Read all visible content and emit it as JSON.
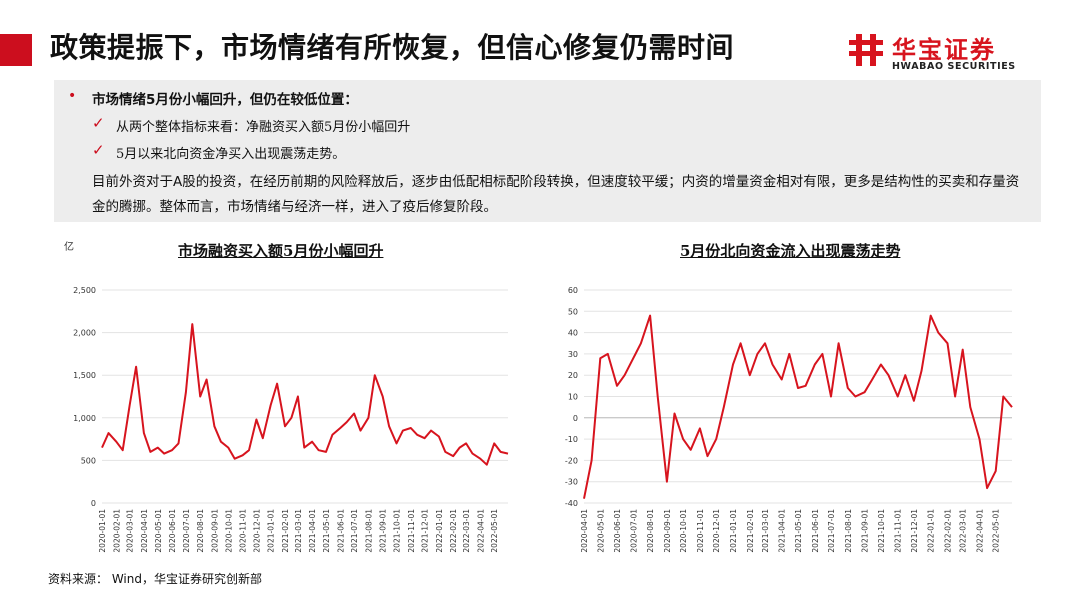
{
  "header": {
    "title": "政策提振下，市场情绪有所恢复，但信心修复仍需时间",
    "accent_color": "#cc0e1e"
  },
  "logo": {
    "cn": "华宝证券",
    "en": "HWABAO SECURITIES",
    "brand_color": "#d7141e"
  },
  "summary": {
    "main_bullet": "市场情绪5月份小幅回升，但仍在较低位置：",
    "sub_bullets": [
      "从两个整体指标来看：净融资买入额5月份小幅回升",
      "5月以来北向资金净买入出现震荡走势。"
    ],
    "paragraph": "目前外资对于A股的投资，在经历前期的风险释放后，逐步由低配相标配阶段转换，但速度较平缓；内资的增量资金相对有限，更多是结构性的买卖和存量资金的腾挪。整体而言，市场情绪与经济一样，进入了疫后修复阶段。",
    "bullet_icon": "check-icon"
  },
  "chart_data": [
    {
      "type": "line",
      "title": "市场融资买入额5月份小幅回升",
      "unit": "亿",
      "ylim": [
        0,
        2500
      ],
      "yticks": [
        0,
        500,
        1000,
        1500,
        2000,
        2500
      ],
      "ytick_labels": [
        "0",
        "500",
        "1,000",
        "1,500",
        "2,000",
        "2,500"
      ],
      "x_labels": [
        "2020-01-01",
        "2020-02-01",
        "2020-03-01",
        "2020-04-01",
        "2020-05-01",
        "2020-06-01",
        "2020-07-01",
        "2020-08-01",
        "2020-09-01",
        "2020-10-01",
        "2020-11-01",
        "2020-12-01",
        "2021-01-01",
        "2021-02-01",
        "2021-03-01",
        "2021-04-01",
        "2021-05-01",
        "2021-06-01",
        "2021-07-01",
        "2021-08-01",
        "2021-09-01",
        "2021-10-01",
        "2021-11-01",
        "2021-12-01",
        "2022-01-01",
        "2022-02-01",
        "2022-03-01",
        "2022-04-01",
        "2022-05-01"
      ],
      "grid": true,
      "line_color": "#d7141e",
      "x": [
        "2020-01-01",
        "2020-01-15",
        "2020-02-01",
        "2020-02-15",
        "2020-03-01",
        "2020-03-15",
        "2020-04-01",
        "2020-04-15",
        "2020-05-01",
        "2020-05-15",
        "2020-06-01",
        "2020-06-15",
        "2020-07-01",
        "2020-07-15",
        "2020-08-01",
        "2020-08-15",
        "2020-09-01",
        "2020-09-15",
        "2020-10-01",
        "2020-10-15",
        "2020-11-01",
        "2020-11-15",
        "2020-12-01",
        "2020-12-15",
        "2021-01-01",
        "2021-01-15",
        "2021-02-01",
        "2021-02-15",
        "2021-03-01",
        "2021-03-15",
        "2021-04-01",
        "2021-04-15",
        "2021-05-01",
        "2021-05-15",
        "2021-06-01",
        "2021-06-15",
        "2021-07-01",
        "2021-07-15",
        "2021-08-01",
        "2021-08-15",
        "2021-09-01",
        "2021-09-15",
        "2021-10-01",
        "2021-10-15",
        "2021-11-01",
        "2021-11-15",
        "2021-12-01",
        "2021-12-15",
        "2022-01-01",
        "2022-01-15",
        "2022-02-01",
        "2022-02-15",
        "2022-03-01",
        "2022-03-15",
        "2022-04-01",
        "2022-04-15",
        "2022-05-01",
        "2022-05-15",
        "2022-05-31"
      ],
      "values": [
        650,
        820,
        720,
        620,
        1150,
        1600,
        820,
        600,
        650,
        580,
        620,
        700,
        1300,
        2100,
        1250,
        1450,
        900,
        720,
        650,
        520,
        560,
        620,
        980,
        760,
        1150,
        1400,
        900,
        1000,
        1250,
        650,
        720,
        620,
        600,
        800,
        880,
        950,
        1050,
        850,
        1000,
        1500,
        1250,
        900,
        700,
        850,
        880,
        800,
        760,
        850,
        780,
        600,
        550,
        650,
        700,
        580,
        520,
        450,
        700,
        600,
        580
      ]
    },
    {
      "type": "line",
      "title": "5月份北向资金流入出现震荡走势",
      "ylim": [
        -40,
        60
      ],
      "yticks": [
        -40,
        -30,
        -20,
        -10,
        0,
        10,
        20,
        30,
        40,
        50,
        60
      ],
      "ytick_labels": [
        "-40",
        "-30",
        "-20",
        "-10",
        "0",
        "10",
        "20",
        "30",
        "40",
        "50",
        "60"
      ],
      "x_labels": [
        "2020-04-01",
        "2020-05-01",
        "2020-06-01",
        "2020-07-01",
        "2020-08-01",
        "2020-09-01",
        "2020-10-01",
        "2020-11-01",
        "2020-12-01",
        "2021-01-01",
        "2021-02-01",
        "2021-03-01",
        "2021-04-01",
        "2021-05-01",
        "2021-06-01",
        "2021-07-01",
        "2021-08-01",
        "2021-09-01",
        "2021-10-01",
        "2021-11-01",
        "2021-12-01",
        "2022-01-01",
        "2022-02-01",
        "2022-03-01",
        "2022-04-01",
        "2022-05-01"
      ],
      "grid": true,
      "line_color": "#d7141e",
      "x": [
        "2020-04-01",
        "2020-04-15",
        "2020-05-01",
        "2020-05-15",
        "2020-06-01",
        "2020-06-15",
        "2020-07-01",
        "2020-07-15",
        "2020-08-01",
        "2020-08-15",
        "2020-09-01",
        "2020-09-15",
        "2020-10-01",
        "2020-10-15",
        "2020-11-01",
        "2020-11-15",
        "2020-12-01",
        "2020-12-15",
        "2021-01-01",
        "2021-01-15",
        "2021-02-01",
        "2021-02-15",
        "2021-03-01",
        "2021-03-15",
        "2021-04-01",
        "2021-04-15",
        "2021-05-01",
        "2021-05-15",
        "2021-06-01",
        "2021-06-15",
        "2021-07-01",
        "2021-07-15",
        "2021-08-01",
        "2021-08-15",
        "2021-09-01",
        "2021-09-15",
        "2021-10-01",
        "2021-10-15",
        "2021-11-01",
        "2021-11-15",
        "2021-12-01",
        "2021-12-15",
        "2022-01-01",
        "2022-01-15",
        "2022-02-01",
        "2022-02-15",
        "2022-03-01",
        "2022-03-15",
        "2022-04-01",
        "2022-04-15",
        "2022-05-01",
        "2022-05-15",
        "2022-05-31"
      ],
      "values": [
        -38,
        -20,
        28,
        30,
        15,
        20,
        28,
        35,
        48,
        10,
        -30,
        2,
        -10,
        -15,
        -5,
        -18,
        -10,
        5,
        25,
        35,
        20,
        30,
        35,
        25,
        18,
        30,
        14,
        15,
        25,
        30,
        10,
        35,
        14,
        10,
        12,
        18,
        25,
        20,
        10,
        20,
        8,
        22,
        48,
        40,
        35,
        10,
        32,
        5,
        -10,
        -33,
        -25,
        10,
        5
      ]
    }
  ],
  "footer": {
    "source": "资料来源： Wind，华宝证券研究创新部"
  }
}
